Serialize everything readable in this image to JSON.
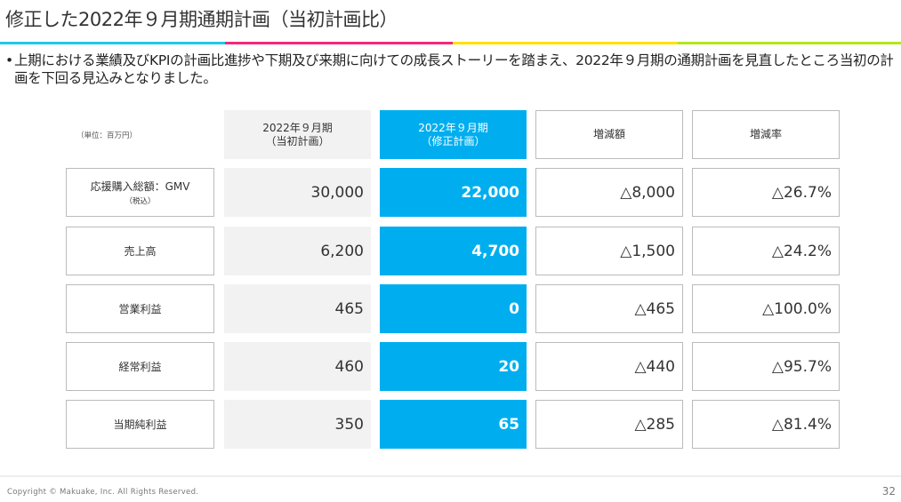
{
  "title": "修正した2022年９月期通期計画（当初計画比）",
  "accent_colors": [
    "#1ec8f0",
    "#f5287a",
    "#ffe000",
    "#b4e61e"
  ],
  "bullet": "上期における業績及びKPIの計画比進捗や下期及び来期に向けての成長ストーリーを踏まえ、2022年９月期の通期計画を見直したところ当初の計画を下回る見込みとなりました。",
  "table": {
    "unit": "（単位：百万円）",
    "headers": {
      "original_1": "2022年９月期",
      "original_2": "（当初計画）",
      "revised_1": "2022年９月期",
      "revised_2": "（修正計画）",
      "change": "増減額",
      "rate": "増減率"
    },
    "rows": [
      {
        "label": "応援購入総額：GMV",
        "sub": "（税込）",
        "original": "30,000",
        "revised": "22,000",
        "change": "△8,000",
        "rate": "△26.7%"
      },
      {
        "label": "売上高",
        "sub": "",
        "original": "6,200",
        "revised": "4,700",
        "change": "△1,500",
        "rate": "△24.2%"
      },
      {
        "label": "営業利益",
        "sub": "",
        "original": "465",
        "revised": "0",
        "change": "△465",
        "rate": "△100.0%"
      },
      {
        "label": "経常利益",
        "sub": "",
        "original": "460",
        "revised": "20",
        "change": "△440",
        "rate": "△95.7%"
      },
      {
        "label": "当期純利益",
        "sub": "",
        "original": "350",
        "revised": "65",
        "change": "△285",
        "rate": "△81.4%"
      }
    ]
  },
  "footer": {
    "copyright": "Copyright © Makuake, Inc. All Rights Reserved.",
    "page": "32"
  }
}
